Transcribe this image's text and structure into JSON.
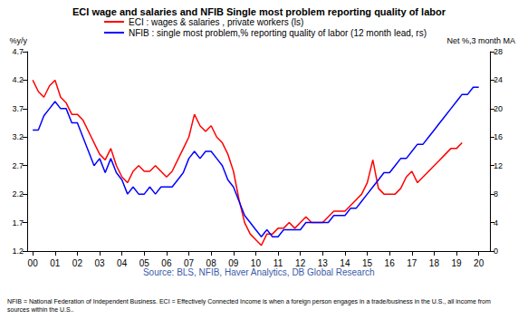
{
  "chart_data": {
    "type": "line",
    "title": "ECI wage and salaries and NFIB Single most problem reporting quality of labor",
    "y_label": "%y/y",
    "y2_label": "Net %,3 month MA",
    "source": "Source: BLS, NFIB, Haver Analytics, DB Global Research",
    "footnote": "NFIB = National Federation of Independent Business. ECI = Effectively Connected Income is when a foreign person engages in a trade/business in the U.S., all income from sources within the U.S..",
    "grid": false,
    "legend": "top-left",
    "x": [
      2000,
      2000.25,
      2000.5,
      2000.75,
      2001,
      2001.25,
      2001.5,
      2001.75,
      2002,
      2002.25,
      2002.5,
      2002.75,
      2003,
      2003.25,
      2003.5,
      2003.75,
      2004,
      2004.25,
      2004.5,
      2004.75,
      2005,
      2005.25,
      2005.5,
      2005.75,
      2006,
      2006.25,
      2006.5,
      2006.75,
      2007,
      2007.25,
      2007.5,
      2007.75,
      2008,
      2008.25,
      2008.5,
      2008.75,
      2009,
      2009.25,
      2009.5,
      2009.75,
      2010,
      2010.25,
      2010.5,
      2010.75,
      2011,
      2011.25,
      2011.5,
      2011.75,
      2012,
      2012.25,
      2012.5,
      2012.75,
      2013,
      2013.25,
      2013.5,
      2013.75,
      2014,
      2014.25,
      2014.5,
      2014.75,
      2015,
      2015.25,
      2015.5,
      2015.75,
      2016,
      2016.25,
      2016.5,
      2016.75,
      2017,
      2017.25,
      2017.5,
      2017.75,
      2018,
      2018.25,
      2018.5,
      2018.75,
      2019,
      2019.25,
      2019.5,
      2019.75,
      2020
    ],
    "xlim": [
      1999.75,
      2020.5
    ],
    "xticks": [
      {
        "value": 2000,
        "label": "00"
      },
      {
        "value": 2001,
        "label": "01"
      },
      {
        "value": 2002,
        "label": "02"
      },
      {
        "value": 2003,
        "label": "03"
      },
      {
        "value": 2004,
        "label": "04"
      },
      {
        "value": 2005,
        "label": "05"
      },
      {
        "value": 2006,
        "label": "06"
      },
      {
        "value": 2007,
        "label": "07"
      },
      {
        "value": 2008,
        "label": "08"
      },
      {
        "value": 2009,
        "label": "09"
      },
      {
        "value": 2010,
        "label": "10"
      },
      {
        "value": 2011,
        "label": "11"
      },
      {
        "value": 2012,
        "label": "12"
      },
      {
        "value": 2013,
        "label": "13"
      },
      {
        "value": 2014,
        "label": "14"
      },
      {
        "value": 2015,
        "label": "15"
      },
      {
        "value": 2016,
        "label": "16"
      },
      {
        "value": 2017,
        "label": "17"
      },
      {
        "value": 2018,
        "label": "18"
      },
      {
        "value": 2019,
        "label": "19"
      },
      {
        "value": 2020,
        "label": "20"
      }
    ],
    "ylim": [
      1.2,
      4.7
    ],
    "yticks": [
      1.2,
      1.7,
      2.2,
      2.7,
      3.2,
      3.7,
      4.2,
      4.7
    ],
    "y2lim": [
      0,
      28
    ],
    "y2ticks": [
      0,
      4,
      8,
      12,
      16,
      20,
      24,
      28
    ],
    "series": [
      {
        "name": "ECI : wages & salaries , private workers (ls)",
        "color": "#ff0000",
        "axis": "y",
        "values": [
          4.2,
          4.0,
          3.9,
          4.1,
          4.2,
          3.9,
          3.8,
          3.6,
          3.6,
          3.5,
          3.3,
          3.1,
          2.9,
          2.8,
          3.0,
          2.7,
          2.5,
          2.4,
          2.6,
          2.7,
          2.6,
          2.6,
          2.7,
          2.6,
          2.5,
          2.6,
          2.8,
          3.0,
          3.2,
          3.6,
          3.4,
          3.3,
          3.4,
          3.2,
          3.1,
          2.9,
          2.6,
          2.1,
          1.7,
          1.5,
          1.4,
          1.3,
          1.5,
          1.5,
          1.6,
          1.6,
          1.7,
          1.6,
          1.7,
          1.8,
          1.7,
          1.7,
          1.7,
          1.8,
          1.9,
          1.9,
          1.9,
          2.0,
          2.1,
          2.2,
          2.4,
          2.8,
          2.3,
          2.2,
          2.2,
          2.2,
          2.3,
          2.5,
          2.6,
          2.4,
          2.5,
          2.6,
          2.7,
          2.8,
          2.9,
          3.0,
          3.0,
          3.1,
          null,
          null,
          null
        ]
      },
      {
        "name": "NFIB : single most problem,% reporting quality of labor (12 month lead, rs)",
        "color": "#0000ff",
        "axis": "y2",
        "values": [
          17,
          17,
          19,
          20,
          21,
          20,
          20,
          18,
          18,
          16,
          14,
          12,
          13,
          11,
          13,
          11,
          10,
          8,
          9,
          8,
          8,
          9,
          8,
          9,
          9,
          9,
          10,
          11,
          13,
          14,
          13,
          14,
          14,
          13,
          12,
          10,
          9,
          7,
          5,
          4,
          3,
          2,
          3,
          2,
          2,
          3,
          3,
          3,
          3,
          4,
          4,
          4,
          4,
          4,
          5,
          5,
          5,
          6,
          6,
          7,
          8,
          9,
          10,
          11,
          11,
          12,
          13,
          13,
          14,
          15,
          15,
          16,
          17,
          18,
          19,
          20,
          21,
          22,
          22,
          23,
          23
        ]
      }
    ]
  }
}
